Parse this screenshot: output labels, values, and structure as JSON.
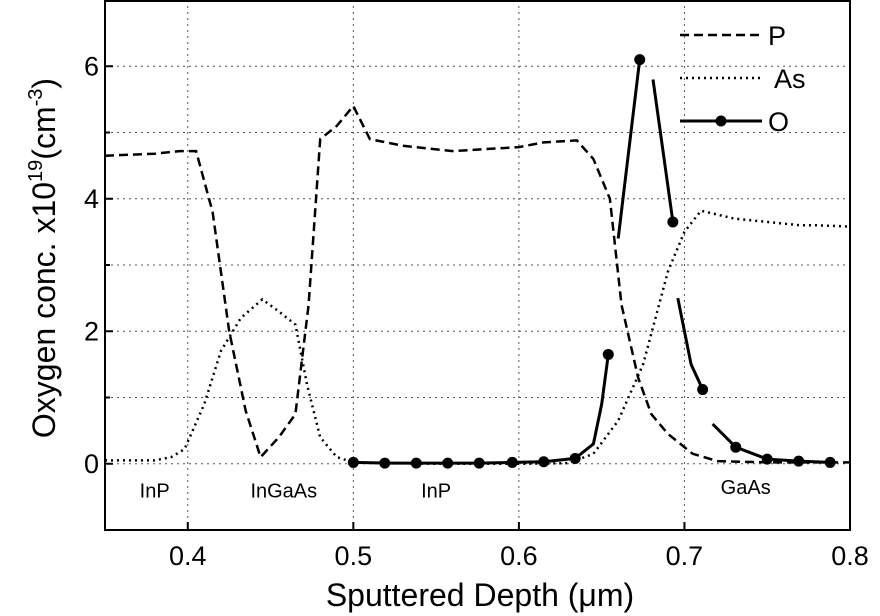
{
  "chart_data": {
    "type": "line",
    "xlabel": "Sputtered Depth (μm)",
    "ylabel": "Oxygen conc. x10",
    "ylabel_exponent": "19",
    "ylabel_unit": "(cm",
    "ylabel_unit_exponent": "-3",
    "ylabel_close": ")",
    "xlim": [
      0.35,
      0.8
    ],
    "ylim": [
      -1.0,
      7.0
    ],
    "xticks": [
      0.4,
      0.5,
      0.6,
      0.7,
      0.8
    ],
    "xtick_labels": [
      "0.4",
      "0.5",
      "0.6",
      "0.7",
      "0.8"
    ],
    "yticks": [
      0,
      2,
      4,
      6
    ],
    "ytick_labels": [
      "0",
      "2",
      "4",
      "6"
    ],
    "grid": true,
    "legend_position": "top-right",
    "series": [
      {
        "name": "P",
        "style": "dashed",
        "segments": [
          [
            [
              0.35,
              4.65
            ],
            [
              0.38,
              4.68
            ],
            [
              0.395,
              4.72
            ],
            [
              0.405,
              4.72
            ],
            [
              0.415,
              3.8
            ],
            [
              0.425,
              2.0
            ],
            [
              0.435,
              0.8
            ],
            [
              0.444,
              0.1
            ],
            [
              0.455,
              0.4
            ],
            [
              0.465,
              0.75
            ],
            [
              0.473,
              2.4
            ],
            [
              0.48,
              4.9
            ],
            [
              0.49,
              5.1
            ],
            [
              0.5,
              5.4
            ],
            [
              0.51,
              4.9
            ],
            [
              0.53,
              4.8
            ],
            [
              0.56,
              4.72
            ],
            [
              0.58,
              4.75
            ],
            [
              0.6,
              4.78
            ],
            [
              0.615,
              4.85
            ],
            [
              0.635,
              4.88
            ],
            [
              0.645,
              4.6
            ],
            [
              0.655,
              4.0
            ],
            [
              0.662,
              2.4
            ],
            [
              0.672,
              1.3
            ],
            [
              0.68,
              0.75
            ],
            [
              0.69,
              0.45
            ],
            [
              0.705,
              0.15
            ],
            [
              0.72,
              0.04
            ],
            [
              0.75,
              0.02
            ],
            [
              0.8,
              0.02
            ]
          ]
        ]
      },
      {
        "name": "As",
        "style": "dotted",
        "segments": [
          [
            [
              0.35,
              0.05
            ],
            [
              0.38,
              0.05
            ],
            [
              0.39,
              0.1
            ],
            [
              0.398,
              0.22
            ],
            [
              0.41,
              0.9
            ],
            [
              0.42,
              1.7
            ],
            [
              0.432,
              2.2
            ],
            [
              0.445,
              2.48
            ],
            [
              0.455,
              2.3
            ],
            [
              0.465,
              2.1
            ],
            [
              0.472,
              1.2
            ],
            [
              0.48,
              0.4
            ],
            [
              0.49,
              0.1
            ],
            [
              0.5,
              0.02
            ],
            [
              0.55,
              0.0
            ],
            [
              0.6,
              0.0
            ],
            [
              0.63,
              0.01
            ],
            [
              0.645,
              0.15
            ],
            [
              0.66,
              0.65
            ],
            [
              0.675,
              1.5
            ],
            [
              0.69,
              2.9
            ],
            [
              0.7,
              3.5
            ],
            [
              0.71,
              3.82
            ],
            [
              0.73,
              3.7
            ],
            [
              0.75,
              3.65
            ],
            [
              0.77,
              3.6
            ],
            [
              0.78,
              3.6
            ],
            [
              0.8,
              3.58
            ]
          ]
        ]
      },
      {
        "name": "O",
        "style": "solid-markers",
        "segments": [
          [
            [
              0.5,
              0.02
            ],
            [
              0.519,
              0.01
            ],
            [
              0.538,
              0.01
            ],
            [
              0.557,
              0.01
            ],
            [
              0.576,
              0.01
            ],
            [
              0.596,
              0.02
            ],
            [
              0.615,
              0.03
            ],
            [
              0.634,
              0.08
            ],
            [
              0.645,
              0.3
            ],
            [
              0.65,
              0.9
            ],
            [
              0.654,
              1.65
            ]
          ],
          [
            [
              0.66,
              3.4
            ],
            [
              0.673,
              6.1
            ]
          ],
          [
            [
              0.681,
              5.8
            ],
            [
              0.693,
              3.65
            ]
          ],
          [
            [
              0.696,
              2.5
            ],
            [
              0.704,
              1.5
            ],
            [
              0.711,
              1.12
            ]
          ],
          [
            [
              0.717,
              0.6
            ],
            [
              0.731,
              0.25
            ],
            [
              0.75,
              0.07
            ],
            [
              0.769,
              0.04
            ],
            [
              0.788,
              0.02
            ]
          ]
        ],
        "markers": [
          [
            0.5,
            0.02
          ],
          [
            0.519,
            0.01
          ],
          [
            0.538,
            0.01
          ],
          [
            0.557,
            0.01
          ],
          [
            0.576,
            0.01
          ],
          [
            0.596,
            0.02
          ],
          [
            0.615,
            0.03
          ],
          [
            0.634,
            0.08
          ],
          [
            0.654,
            1.65
          ],
          [
            0.673,
            6.1
          ],
          [
            0.693,
            3.65
          ],
          [
            0.711,
            1.12
          ],
          [
            0.731,
            0.25
          ],
          [
            0.75,
            0.07
          ],
          [
            0.769,
            0.04
          ],
          [
            0.788,
            0.02
          ]
        ]
      }
    ],
    "annotations": [
      {
        "text": "InP",
        "x": 0.38,
        "y": -0.4
      },
      {
        "text": "InGaAs",
        "x": 0.458,
        "y": -0.4
      },
      {
        "text": "InP",
        "x": 0.55,
        "y": -0.4
      },
      {
        "text": "GaAs",
        "x": 0.737,
        "y": -0.35
      }
    ]
  }
}
